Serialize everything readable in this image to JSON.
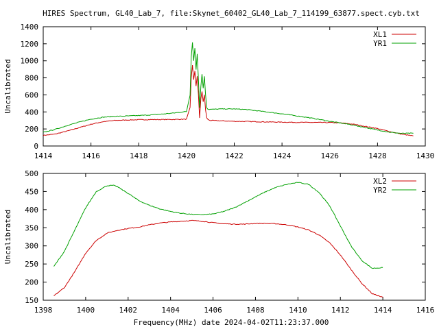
{
  "title": "HIRES Spectrum, GL40_Lab_7, file:Skynet_60402_GL40_Lab_7_114199_63877.spect.cyb.txt",
  "xlabel": "Frequency(MHz) date 2024-04-02T11:23:37.000",
  "colors": {
    "red": "#cc0000",
    "green": "#00a000",
    "axis": "#000000"
  },
  "chart_data": [
    {
      "type": "line",
      "ylabel": "Uncalibrated",
      "xlim": [
        1414,
        1430
      ],
      "ylim": [
        0,
        1400
      ],
      "xticks": [
        "1414",
        "1416",
        "1418",
        "1420",
        "1422",
        "1424",
        "1426",
        "1428",
        "1430"
      ],
      "yticks": [
        "0",
        "200",
        "400",
        "600",
        "800",
        "1000",
        "1200",
        "1400"
      ],
      "legend": "top-right",
      "grid": false,
      "series": [
        {
          "name": "XL1",
          "color": "#cc0000",
          "x": [
            1414.0,
            1414.5,
            1415.0,
            1415.5,
            1416.0,
            1416.5,
            1417.0,
            1417.5,
            1418.0,
            1418.5,
            1419.0,
            1419.5,
            1420.0,
            1420.15,
            1420.2,
            1420.25,
            1420.3,
            1420.35,
            1420.4,
            1420.45,
            1420.5,
            1420.55,
            1420.6,
            1420.65,
            1420.7,
            1420.75,
            1420.8,
            1420.85,
            1420.9,
            1421.0,
            1421.5,
            1422.0,
            1422.5,
            1423.0,
            1423.5,
            1424.0,
            1424.5,
            1425.0,
            1425.5,
            1426.0,
            1426.5,
            1427.0,
            1427.5,
            1428.0,
            1428.5,
            1429.0,
            1429.5
          ],
          "y": [
            125,
            140,
            175,
            215,
            255,
            285,
            300,
            305,
            308,
            310,
            310,
            312,
            315,
            450,
            800,
            950,
            780,
            880,
            700,
            820,
            600,
            330,
            550,
            640,
            520,
            600,
            420,
            330,
            310,
            300,
            295,
            290,
            288,
            285,
            282,
            280,
            278,
            277,
            276,
            275,
            270,
            255,
            230,
            205,
            170,
            140,
            118
          ]
        },
        {
          "name": "YR1",
          "color": "#00a000",
          "x": [
            1414.0,
            1414.5,
            1415.0,
            1415.5,
            1416.0,
            1416.5,
            1417.0,
            1417.5,
            1418.0,
            1418.5,
            1419.0,
            1419.5,
            1420.0,
            1420.15,
            1420.2,
            1420.25,
            1420.3,
            1420.35,
            1420.4,
            1420.45,
            1420.5,
            1420.55,
            1420.6,
            1420.65,
            1420.7,
            1420.75,
            1420.8,
            1420.85,
            1420.9,
            1421.0,
            1421.5,
            1422.0,
            1422.5,
            1423.0,
            1423.5,
            1424.0,
            1424.5,
            1425.0,
            1425.5,
            1426.0,
            1426.5,
            1427.0,
            1427.5,
            1428.0,
            1428.5,
            1429.0,
            1429.5
          ],
          "y": [
            160,
            195,
            240,
            280,
            315,
            338,
            348,
            352,
            358,
            365,
            375,
            388,
            405,
            600,
            1050,
            1220,
            1000,
            1150,
            900,
            1080,
            780,
            450,
            700,
            840,
            680,
            820,
            600,
            450,
            430,
            430,
            435,
            435,
            428,
            412,
            395,
            378,
            358,
            338,
            315,
            290,
            268,
            245,
            215,
            188,
            162,
            148,
            150
          ]
        }
      ]
    },
    {
      "type": "line",
      "ylabel": "Uncalibrated",
      "xlim": [
        1398,
        1416
      ],
      "ylim": [
        150,
        500
      ],
      "xticks": [
        "1398",
        "1400",
        "1402",
        "1404",
        "1406",
        "1408",
        "1410",
        "1412",
        "1414",
        "1416"
      ],
      "yticks": [
        "150",
        "200",
        "250",
        "300",
        "350",
        "400",
        "450",
        "500"
      ],
      "legend": "top-right",
      "grid": false,
      "series": [
        {
          "name": "XL2",
          "color": "#cc0000",
          "x": [
            1398.5,
            1399.0,
            1399.5,
            1400.0,
            1400.5,
            1401.0,
            1401.5,
            1402.0,
            1402.5,
            1403.0,
            1403.5,
            1404.0,
            1404.5,
            1405.0,
            1405.5,
            1406.0,
            1406.5,
            1407.0,
            1407.5,
            1408.0,
            1408.5,
            1409.0,
            1409.5,
            1410.0,
            1410.5,
            1411.0,
            1411.5,
            1412.0,
            1412.5,
            1413.0,
            1413.5,
            1414.0
          ],
          "y": [
            162,
            185,
            230,
            280,
            315,
            335,
            343,
            348,
            352,
            358,
            363,
            366,
            368,
            370,
            368,
            364,
            361,
            360,
            360,
            362,
            362,
            361,
            358,
            352,
            344,
            330,
            308,
            275,
            235,
            197,
            168,
            158
          ]
        },
        {
          "name": "YR2",
          "color": "#00a000",
          "x": [
            1398.5,
            1399.0,
            1399.5,
            1400.0,
            1400.5,
            1401.0,
            1401.3,
            1401.5,
            1402.0,
            1402.5,
            1403.0,
            1403.5,
            1404.0,
            1404.5,
            1405.0,
            1405.5,
            1406.0,
            1406.5,
            1407.0,
            1407.5,
            1408.0,
            1408.5,
            1409.0,
            1409.5,
            1410.0,
            1410.5,
            1411.0,
            1411.5,
            1412.0,
            1412.5,
            1413.0,
            1413.5,
            1414.0
          ],
          "y": [
            243,
            285,
            345,
            405,
            450,
            466,
            467,
            463,
            445,
            425,
            412,
            402,
            395,
            390,
            387,
            386,
            388,
            395,
            405,
            420,
            435,
            450,
            462,
            470,
            475,
            470,
            447,
            410,
            355,
            300,
            260,
            238,
            240
          ]
        }
      ]
    }
  ]
}
